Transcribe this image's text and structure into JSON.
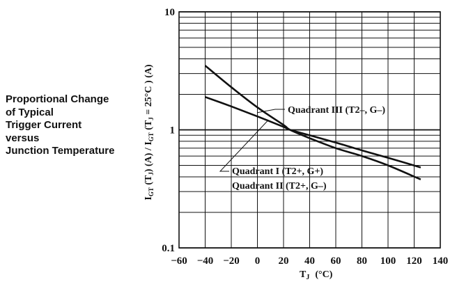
{
  "side_title": {
    "lines": [
      "Proportional Change",
      "of Typical",
      "Trigger Current",
      "versus",
      "Junction Temperature"
    ]
  },
  "chart_data": {
    "type": "line",
    "title": "Proportional Change of Typical Trigger Current versus Junction Temperature",
    "xlabel": {
      "main": "T",
      "sub": "J",
      "unit": "(°C)"
    },
    "ylabel": {
      "p1": "I",
      "s1": "GT",
      "p2": " (T",
      "s2": "J",
      "p3": ") (A) / I",
      "s3": "GT",
      "p4": " (T",
      "s4": "J",
      "p5": " = 25°C ) (A)"
    },
    "xlim": [
      -60,
      140
    ],
    "ylim": [
      0.1,
      10
    ],
    "yscale": "log",
    "grid": true,
    "xticks": [
      -60,
      -40,
      -20,
      0,
      20,
      40,
      60,
      80,
      100,
      120,
      140
    ],
    "yticks": [
      0.1,
      1,
      10
    ],
    "ytick_labels": [
      "0.1",
      "1",
      "10"
    ],
    "series": [
      {
        "name": "Quadrant III (T2–, G–)",
        "x": [
          -40,
          -20,
          0,
          20,
          25,
          40,
          60,
          80,
          100,
          125
        ],
        "y": [
          3.5,
          2.3,
          1.55,
          1.1,
          1.0,
          0.85,
          0.7,
          0.6,
          0.5,
          0.38
        ]
      },
      {
        "name": "Quadrant I (T2+, G+)",
        "x": [
          -40,
          -20,
          0,
          20,
          25,
          40,
          60,
          80,
          100,
          125
        ],
        "y": [
          1.9,
          1.58,
          1.3,
          1.06,
          1.0,
          0.9,
          0.78,
          0.67,
          0.58,
          0.48
        ]
      },
      {
        "name": "Quadrant II (T2+, G–)"
      }
    ]
  }
}
